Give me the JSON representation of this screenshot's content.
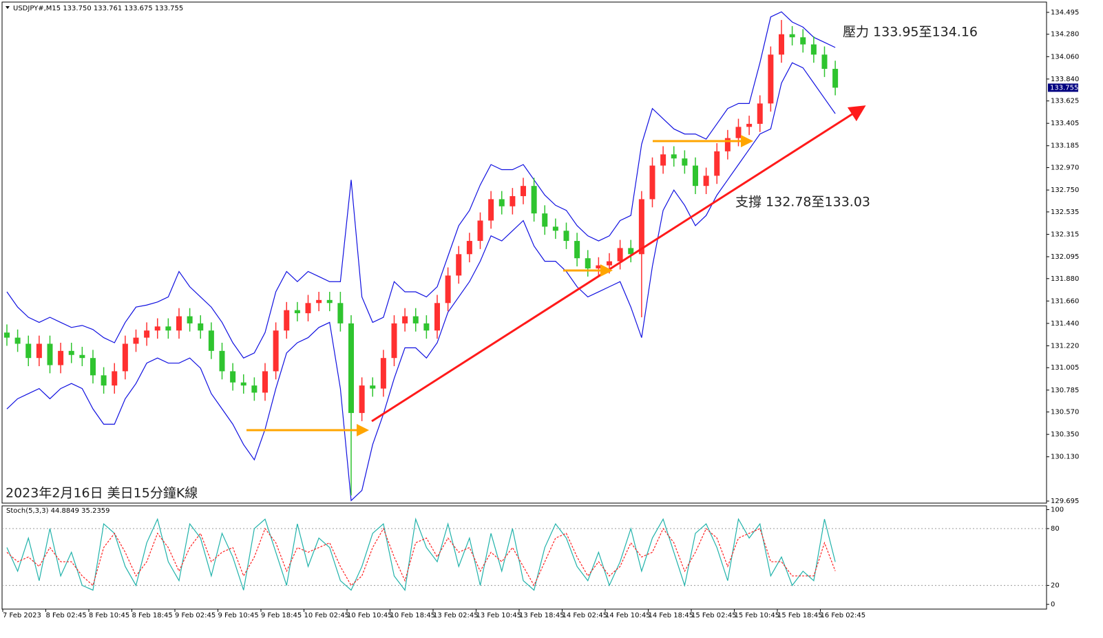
{
  "chart_data": [
    {
      "type": "candlestick",
      "title": "USDJPY#,M15 133.750 133.761 133.675 133.755",
      "up_color": "#ff3030",
      "down_color": "#2fc42f",
      "band_color": "#1010e0",
      "categories": [
        "7 Feb 2023",
        null,
        null,
        null,
        "8 Feb 02:45",
        null,
        null,
        null,
        "8 Feb 10:45",
        null,
        null,
        null,
        "8 Feb 18:45",
        null,
        null,
        null,
        "9 Feb 02:45",
        null,
        null,
        null,
        "9 Feb 10:45",
        null,
        null,
        null,
        "9 Feb 18:45",
        null,
        null,
        null,
        "10 Feb 02:45",
        null,
        null,
        null,
        "10 Feb 10:45",
        null,
        null,
        null,
        "10 Feb 18:45",
        null,
        null,
        null,
        "13 Feb 02:45",
        null,
        null,
        null,
        "13 Feb 10:45",
        null,
        null,
        null,
        "13 Feb 18:45",
        null,
        null,
        null,
        "14 Feb 02:45",
        null,
        null,
        null,
        "14 Feb 10:45",
        null,
        null,
        null,
        "14 Feb 18:45",
        null,
        null,
        null,
        "15 Feb 02:45",
        null,
        null,
        null,
        "15 Feb 10:45",
        null,
        null,
        null,
        "15 Feb 18:45",
        null,
        null,
        null,
        "16 Feb 02:45",
        null
      ],
      "open": [
        131.35,
        131.3,
        131.24,
        131.1,
        131.24,
        131.03,
        131.17,
        131.13,
        131.1,
        130.93,
        130.83,
        130.97,
        131.24,
        131.3,
        131.37,
        131.41,
        131.37,
        131.51,
        131.44,
        131.37,
        131.17,
        130.97,
        130.86,
        130.83,
        130.76,
        130.97,
        131.37,
        131.57,
        131.54,
        131.64,
        131.67,
        131.64,
        131.44,
        130.56,
        130.83,
        130.8,
        131.1,
        131.44,
        131.51,
        131.44,
        131.37,
        131.64,
        131.91,
        132.12,
        132.25,
        132.45,
        132.66,
        132.59,
        132.69,
        132.79,
        132.52,
        132.39,
        132.35,
        132.25,
        132.08,
        131.98,
        132.01,
        132.05,
        132.18,
        132.12,
        132.66,
        132.99,
        133.1,
        133.06,
        132.99,
        132.79,
        132.89,
        133.13,
        133.26,
        133.37,
        133.4,
        133.6,
        134.08,
        134.28,
        134.25,
        134.18,
        134.08,
        133.94
      ],
      "high": [
        131.43,
        131.38,
        131.32,
        131.32,
        131.32,
        131.25,
        131.25,
        131.21,
        131.18,
        131.01,
        131.05,
        131.32,
        131.38,
        131.45,
        131.49,
        131.49,
        131.59,
        131.59,
        131.52,
        131.45,
        131.25,
        131.05,
        130.94,
        130.91,
        131.05,
        131.45,
        131.65,
        131.65,
        131.72,
        131.75,
        131.75,
        131.75,
        131.52,
        130.91,
        130.91,
        131.18,
        131.52,
        131.59,
        131.59,
        131.52,
        131.72,
        131.99,
        132.2,
        132.33,
        132.53,
        132.74,
        132.74,
        132.77,
        132.87,
        132.87,
        132.6,
        132.47,
        132.43,
        132.33,
        132.16,
        132.09,
        132.13,
        132.26,
        132.26,
        132.74,
        133.07,
        133.18,
        133.18,
        133.14,
        133.07,
        132.97,
        133.21,
        133.34,
        133.45,
        133.48,
        133.68,
        134.16,
        134.42,
        134.36,
        134.33,
        134.26,
        134.16,
        134.02
      ],
      "low": [
        131.22,
        131.16,
        131.02,
        131.02,
        130.95,
        130.95,
        131.05,
        131.02,
        130.85,
        130.75,
        130.75,
        130.89,
        131.16,
        131.22,
        131.29,
        131.29,
        131.29,
        131.36,
        131.29,
        131.09,
        130.89,
        130.78,
        130.75,
        130.68,
        130.68,
        130.89,
        131.29,
        131.46,
        131.46,
        131.56,
        131.56,
        131.36,
        129.75,
        130.48,
        130.72,
        130.72,
        131.02,
        131.36,
        131.36,
        131.29,
        131.29,
        131.56,
        131.83,
        132.04,
        132.17,
        132.37,
        132.51,
        132.51,
        132.61,
        132.44,
        132.31,
        132.27,
        132.17,
        132.0,
        131.9,
        131.9,
        131.93,
        131.97,
        132.04,
        131.5,
        132.58,
        132.91,
        132.98,
        132.91,
        132.71,
        132.71,
        132.81,
        133.05,
        133.18,
        133.29,
        133.32,
        133.52,
        134.0,
        134.17,
        134.1,
        134.0,
        133.86,
        133.68
      ],
      "close": [
        131.3,
        131.24,
        131.1,
        131.24,
        131.03,
        131.17,
        131.13,
        131.1,
        130.93,
        130.83,
        130.97,
        131.24,
        131.3,
        131.37,
        131.41,
        131.37,
        131.51,
        131.44,
        131.37,
        131.17,
        130.97,
        130.86,
        130.83,
        130.76,
        130.97,
        131.37,
        131.57,
        131.54,
        131.64,
        131.67,
        131.64,
        131.44,
        130.56,
        130.83,
        130.8,
        131.1,
        131.44,
        131.51,
        131.44,
        131.37,
        131.64,
        131.91,
        132.12,
        132.25,
        132.45,
        132.66,
        132.59,
        132.69,
        132.79,
        132.52,
        132.39,
        132.35,
        132.25,
        132.08,
        131.98,
        132.01,
        132.05,
        132.18,
        132.12,
        132.66,
        132.99,
        133.1,
        133.06,
        132.99,
        132.79,
        132.89,
        133.13,
        133.26,
        133.37,
        133.4,
        133.6,
        134.08,
        134.28,
        134.25,
        134.18,
        134.08,
        133.94,
        133.755
      ],
      "upper_band": [
        131.75,
        131.6,
        131.5,
        131.45,
        131.5,
        131.45,
        131.4,
        131.42,
        131.38,
        131.3,
        131.25,
        131.45,
        131.6,
        131.62,
        131.65,
        131.7,
        131.95,
        131.8,
        131.7,
        131.6,
        131.45,
        131.25,
        131.1,
        131.15,
        131.35,
        131.75,
        131.95,
        131.85,
        131.95,
        131.9,
        131.85,
        131.85,
        132.85,
        131.7,
        131.45,
        131.5,
        131.85,
        131.75,
        131.75,
        131.7,
        131.8,
        132.1,
        132.4,
        132.55,
        132.8,
        133.0,
        132.95,
        132.95,
        133.0,
        132.85,
        132.7,
        132.6,
        132.55,
        132.4,
        132.3,
        132.25,
        132.3,
        132.45,
        132.5,
        133.2,
        133.55,
        133.45,
        133.35,
        133.3,
        133.3,
        133.25,
        133.4,
        133.55,
        133.6,
        133.6,
        134.0,
        134.45,
        134.5,
        134.4,
        134.35,
        134.25,
        134.2,
        134.15
      ],
      "lower_band": [
        130.6,
        130.7,
        130.75,
        130.8,
        130.7,
        130.8,
        130.85,
        130.8,
        130.6,
        130.45,
        130.45,
        130.7,
        130.85,
        131.05,
        131.1,
        131.05,
        131.05,
        131.1,
        131.0,
        130.75,
        130.6,
        130.45,
        130.25,
        130.1,
        130.4,
        130.8,
        131.15,
        131.25,
        131.3,
        131.4,
        131.45,
        130.8,
        129.7,
        129.8,
        130.25,
        130.55,
        130.9,
        131.2,
        131.2,
        131.1,
        131.25,
        131.55,
        131.7,
        131.85,
        132.05,
        132.3,
        132.25,
        132.35,
        132.45,
        132.2,
        132.05,
        132.05,
        131.95,
        131.8,
        131.7,
        131.75,
        131.8,
        131.85,
        131.6,
        131.3,
        132.0,
        132.55,
        132.75,
        132.6,
        132.4,
        132.5,
        132.7,
        132.85,
        133.0,
        133.15,
        133.3,
        133.35,
        133.8,
        134.0,
        133.95,
        133.8,
        133.65,
        133.5
      ],
      "ylim": [
        129.675,
        134.596
      ],
      "yticks": [
        134.495,
        {
          "value": 134.28,
          "label": "134.280"
        },
        {
          "value": 134.06,
          "label": "134.060"
        },
        {
          "value": 133.84,
          "label": "133.840"
        },
        133.625,
        133.405,
        133.185,
        {
          "value": 132.97,
          "label": "132.970"
        },
        {
          "value": 132.75,
          "label": "132.750"
        },
        132.535,
        132.315,
        132.095,
        {
          "value": 131.88,
          "label": "131.880"
        },
        {
          "value": 131.66,
          "label": "131.660"
        },
        {
          "value": 131.44,
          "label": "131.440"
        },
        {
          "value": 131.22,
          "label": "131.220"
        },
        131.005,
        130.785,
        {
          "value": 130.57,
          "label": "130.570"
        },
        {
          "value": 130.35,
          "label": "130.350"
        },
        {
          "value": 130.13,
          "label": "130.130"
        },
        129.695
      ],
      "annotations": [
        "壓力 133.95至134.16",
        "支撐 132.78至133.03",
        "2023年2月16日 美日15分鐘K線"
      ]
    },
    {
      "type": "stochastic",
      "title": "Stoch(5,3,3) 44.8849 35.2359",
      "series": [
        {
          "color": "#20b2aa",
          "dashed": false,
          "values": [
            60,
            35,
            70,
            25,
            80,
            30,
            55,
            20,
            15,
            85,
            75,
            40,
            20,
            65,
            90,
            45,
            25,
            85,
            70,
            30,
            75,
            50,
            15,
            80,
            90,
            55,
            20,
            85,
            40,
            70,
            60,
            25,
            15,
            40,
            75,
            85,
            30,
            15,
            90,
            60,
            45,
            85,
            40,
            70,
            20,
            75,
            35,
            80,
            25,
            15,
            60,
            85,
            70,
            40,
            25,
            55,
            20,
            45,
            80,
            35,
            70,
            90,
            55,
            20,
            75,
            85,
            60,
            25,
            90,
            70,
            85,
            30,
            50,
            20,
            35,
            25,
            90,
            44.8849
          ]
        },
        {
          "color": "#ff2020",
          "dashed": true,
          "values": [
            55,
            45,
            50,
            40,
            60,
            45,
            45,
            30,
            20,
            60,
            75,
            55,
            30,
            45,
            75,
            60,
            35,
            60,
            75,
            45,
            55,
            60,
            30,
            50,
            80,
            65,
            35,
            60,
            55,
            60,
            65,
            40,
            20,
            30,
            60,
            80,
            50,
            25,
            65,
            70,
            50,
            70,
            55,
            60,
            35,
            55,
            45,
            60,
            40,
            20,
            45,
            70,
            75,
            50,
            30,
            45,
            30,
            40,
            65,
            50,
            55,
            80,
            65,
            35,
            55,
            80,
            70,
            40,
            70,
            75,
            80,
            45,
            45,
            30,
            30,
            30,
            65,
            35.2359
          ]
        }
      ],
      "ylim": [
        -5,
        104
      ],
      "yticks": [
        0,
        20,
        80,
        100
      ],
      "grid_levels": [
        20,
        80
      ]
    }
  ]
}
